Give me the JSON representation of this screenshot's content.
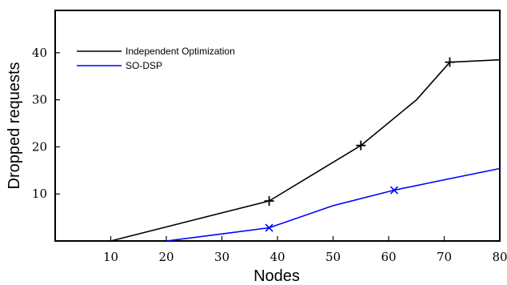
{
  "chart_data": {
    "type": "line",
    "title": "",
    "xlabel": "Nodes",
    "ylabel": "Dropped requests",
    "xlim": [
      0,
      80
    ],
    "ylim": [
      0,
      49
    ],
    "xticks": [
      10,
      20,
      30,
      40,
      50,
      60,
      70,
      80
    ],
    "yticks": [
      10,
      20,
      30,
      40
    ],
    "grid": false,
    "legend_position": "top-left",
    "series": [
      {
        "name": "Independent Optimization",
        "color": "#000000",
        "marker": "plus",
        "x": [
          10,
          38.5,
          55,
          65,
          71,
          80
        ],
        "y": [
          0,
          8.5,
          20.3,
          30,
          38,
          38.5
        ],
        "marker_points": [
          [
            38.5,
            8.5
          ],
          [
            55,
            20.3
          ],
          [
            71,
            38
          ]
        ]
      },
      {
        "name": "SO-DSP",
        "color": "#0000ff",
        "marker": "x",
        "x": [
          20,
          30,
          38.5,
          50,
          61,
          70,
          80
        ],
        "y": [
          0,
          1.5,
          2.8,
          7.5,
          10.8,
          13,
          15.4
        ],
        "marker_points": [
          [
            38.5,
            2.8
          ],
          [
            61,
            10.8
          ]
        ]
      }
    ]
  }
}
